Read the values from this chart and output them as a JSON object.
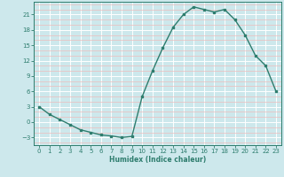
{
  "x": [
    0,
    1,
    2,
    3,
    4,
    5,
    6,
    7,
    8,
    9,
    10,
    11,
    12,
    13,
    14,
    15,
    16,
    17,
    18,
    19,
    20,
    21,
    22,
    23
  ],
  "y": [
    3,
    1.5,
    0.5,
    -0.5,
    -1.5,
    -2,
    -2.5,
    -2.7,
    -3,
    -2.8,
    5,
    10,
    14.5,
    18.5,
    21,
    22.5,
    22,
    21.5,
    22,
    20,
    17,
    13,
    11,
    6
  ],
  "xlabel": "Humidex (Indice chaleur)",
  "line_color": "#2e7d6e",
  "marker_color": "#2e7d6e",
  "bg_color": "#cde8ec",
  "grid_major_color": "#ffffff",
  "grid_minor_color": "#eebcbc",
  "ylim": [
    -4.5,
    23.5
  ],
  "xlim": [
    -0.5,
    23.5
  ],
  "yticks": [
    -3,
    0,
    3,
    6,
    9,
    12,
    15,
    18,
    21
  ],
  "xticks": [
    0,
    1,
    2,
    3,
    4,
    5,
    6,
    7,
    8,
    9,
    10,
    11,
    12,
    13,
    14,
    15,
    16,
    17,
    18,
    19,
    20,
    21,
    22,
    23
  ]
}
